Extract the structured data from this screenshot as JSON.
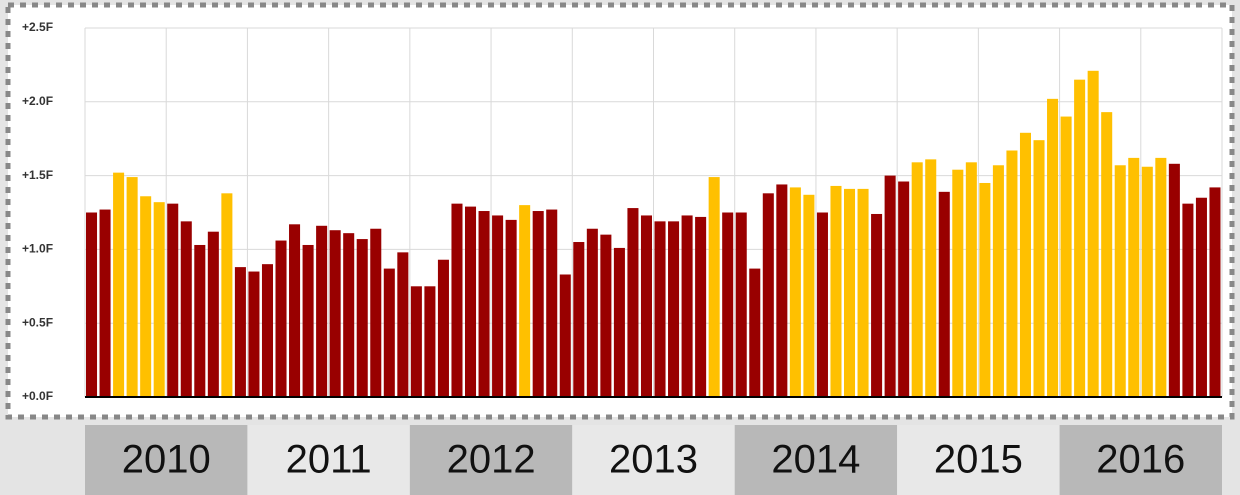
{
  "chart_data": {
    "type": "bar",
    "categories": [
      null,
      null,
      null,
      null,
      null,
      null,
      null,
      null,
      null,
      null,
      null,
      null,
      null,
      null,
      null,
      null,
      null,
      null,
      null,
      null,
      null,
      null,
      null,
      null,
      null,
      null,
      null,
      null,
      null,
      null,
      null,
      null,
      null,
      null,
      null,
      null,
      null,
      null,
      null,
      null,
      null,
      null,
      null,
      null,
      null,
      null,
      null,
      null,
      null,
      null,
      null,
      null,
      null,
      null,
      null,
      null,
      null,
      null,
      null,
      null,
      null,
      null,
      null,
      null,
      null,
      null,
      null,
      null,
      null,
      null,
      null,
      null,
      null,
      null,
      null,
      null,
      null,
      null,
      null,
      null,
      null,
      null,
      null,
      null
    ],
    "groups": [
      "2010",
      "2011",
      "2012",
      "2013",
      "2014",
      "2015",
      "2016"
    ],
    "values": [
      1.25,
      1.27,
      1.52,
      1.49,
      1.36,
      1.32,
      1.31,
      1.19,
      1.03,
      1.12,
      1.38,
      0.88,
      0.85,
      0.9,
      1.06,
      1.17,
      1.03,
      1.16,
      1.13,
      1.11,
      1.07,
      1.14,
      0.87,
      0.98,
      0.75,
      0.75,
      0.93,
      1.31,
      1.29,
      1.26,
      1.23,
      1.2,
      1.3,
      1.26,
      1.27,
      0.83,
      1.05,
      1.14,
      1.1,
      1.01,
      1.28,
      1.23,
      1.19,
      1.19,
      1.23,
      1.22,
      1.49,
      1.25,
      1.25,
      0.87,
      1.38,
      1.44,
      1.42,
      1.37,
      1.25,
      1.43,
      1.41,
      1.41,
      1.24,
      1.5,
      1.46,
      1.59,
      1.61,
      1.39,
      1.54,
      1.59,
      1.45,
      1.57,
      1.67,
      1.79,
      1.74,
      2.02,
      1.9,
      2.15,
      2.21,
      1.93,
      1.57,
      1.62,
      1.56,
      1.62,
      1.58,
      1.31,
      1.35,
      1.42
    ],
    "colors": [
      "#990000",
      "#990000",
      "#ffc000",
      "#ffc000",
      "#ffc000",
      "#ffc000",
      "#990000",
      "#990000",
      "#990000",
      "#990000",
      "#ffc000",
      "#990000",
      "#990000",
      "#990000",
      "#990000",
      "#990000",
      "#990000",
      "#990000",
      "#990000",
      "#990000",
      "#990000",
      "#990000",
      "#990000",
      "#990000",
      "#990000",
      "#990000",
      "#990000",
      "#990000",
      "#990000",
      "#990000",
      "#990000",
      "#990000",
      "#ffc000",
      "#990000",
      "#990000",
      "#990000",
      "#990000",
      "#990000",
      "#990000",
      "#990000",
      "#990000",
      "#990000",
      "#990000",
      "#990000",
      "#990000",
      "#990000",
      "#ffc000",
      "#990000",
      "#990000",
      "#990000",
      "#990000",
      "#990000",
      "#ffc000",
      "#ffc000",
      "#990000",
      "#ffc000",
      "#ffc000",
      "#ffc000",
      "#990000",
      "#990000",
      "#990000",
      "#ffc000",
      "#ffc000",
      "#990000",
      "#ffc000",
      "#ffc000",
      "#ffc000",
      "#ffc000",
      "#ffc000",
      "#ffc000",
      "#ffc000",
      "#ffc000",
      "#ffc000",
      "#ffc000",
      "#ffc000",
      "#ffc000",
      "#ffc000",
      "#ffc000",
      "#ffc000",
      "#ffc000",
      "#990000",
      "#990000",
      "#990000",
      "#990000"
    ],
    "ylim": [
      0,
      2.5
    ],
    "yticks": [
      {
        "value": 0,
        "label": "+0.0F"
      },
      {
        "value": 0.5,
        "label": "+0.5F"
      },
      {
        "value": 1,
        "label": "+1.0F"
      },
      {
        "value": 1.5,
        "label": "+1.5F"
      },
      {
        "value": 2,
        "label": "+2.0F"
      },
      {
        "value": 2.5,
        "label": "+2.5F"
      }
    ],
    "grid": true
  }
}
